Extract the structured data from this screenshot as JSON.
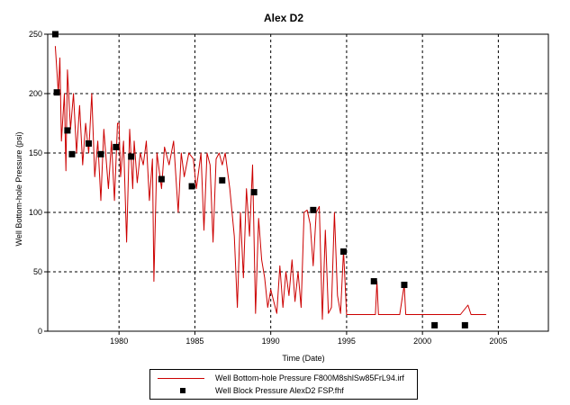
{
  "colors": {
    "line": "#cc0000",
    "marker": "#000000",
    "grid": "#000000",
    "background": "#ffffff"
  },
  "chart_data": {
    "type": "line",
    "title": "Alex D2",
    "xlabel": "Time (Date)",
    "ylabel": "Well Bottom-hole Pressure (psi)",
    "xlim": [
      1975.3,
      2008.3
    ],
    "ylim": [
      0,
      250
    ],
    "xticks": [
      1980,
      1985,
      1990,
      1995,
      2000,
      2005
    ],
    "yticks": [
      0,
      50,
      100,
      150,
      200,
      250
    ],
    "grid": true,
    "grid_style": "dashed",
    "legend_position": "bottom",
    "series": [
      {
        "name": "Well Bottom-hole Pressure F800M8shlSw85FrL94.irf",
        "kind": "line",
        "x": [
          1975.8,
          1976.0,
          1976.1,
          1976.2,
          1976.4,
          1976.5,
          1976.6,
          1976.8,
          1977.0,
          1977.2,
          1977.4,
          1977.6,
          1977.8,
          1978.0,
          1978.2,
          1978.4,
          1978.6,
          1978.8,
          1979.0,
          1979.3,
          1979.5,
          1979.7,
          1979.9,
          1980.0,
          1980.1,
          1980.3,
          1980.5,
          1980.7,
          1980.9,
          1981.0,
          1981.2,
          1981.4,
          1981.6,
          1981.8,
          1982.0,
          1982.2,
          1982.3,
          1982.5,
          1982.8,
          1983.0,
          1983.3,
          1983.6,
          1983.9,
          1984.1,
          1984.3,
          1984.6,
          1984.9,
          1985.1,
          1985.4,
          1985.6,
          1985.8,
          1986.0,
          1986.2,
          1986.4,
          1986.6,
          1986.8,
          1987.0,
          1987.3,
          1987.6,
          1987.8,
          1988.0,
          1988.2,
          1988.4,
          1988.6,
          1988.8,
          1989.0,
          1989.2,
          1989.4,
          1989.6,
          1989.8,
          1990.0,
          1990.2,
          1990.4,
          1990.6,
          1990.8,
          1991.0,
          1991.2,
          1991.4,
          1991.6,
          1991.8,
          1992.0,
          1992.2,
          1992.4,
          1992.6,
          1992.8,
          1993.0,
          1993.2,
          1993.4,
          1993.6,
          1993.8,
          1994.0,
          1994.2,
          1994.4,
          1994.6,
          1994.8,
          1995.0,
          1995.5,
          1996.0,
          1996.5,
          1996.9,
          1997.0,
          1997.1,
          1997.5,
          1998.0,
          1998.5,
          1998.8,
          1998.9,
          1999.0,
          1999.5,
          2000.0,
          2000.5,
          2001.0,
          2001.5,
          2002.0,
          2002.5,
          2003.0,
          2003.2,
          2003.4,
          2003.8,
          2004.2
        ],
        "y": [
          240,
          200,
          230,
          160,
          200,
          135,
          220,
          170,
          200,
          150,
          190,
          140,
          175,
          150,
          200,
          130,
          160,
          110,
          170,
          120,
          160,
          110,
          175,
          175,
          130,
          160,
          75,
          170,
          120,
          160,
          125,
          150,
          140,
          160,
          110,
          145,
          42,
          150,
          120,
          155,
          140,
          160,
          100,
          150,
          130,
          150,
          145,
          120,
          150,
          85,
          150,
          140,
          75,
          145,
          150,
          140,
          150,
          120,
          80,
          20,
          100,
          45,
          120,
          80,
          140,
          15,
          95,
          60,
          45,
          20,
          35,
          25,
          15,
          55,
          20,
          50,
          30,
          60,
          25,
          50,
          20,
          100,
          102,
          90,
          55,
          100,
          105,
          10,
          85,
          15,
          20,
          100,
          30,
          15,
          68,
          14,
          14,
          14,
          14,
          14,
          42,
          14,
          14,
          14,
          14,
          39,
          14,
          14,
          14,
          14,
          14,
          14,
          14,
          14,
          14,
          22,
          14,
          14,
          14,
          14
        ]
      },
      {
        "name": "Well Block Pressure AlexD2 FSP.fhf",
        "kind": "scatter",
        "x": [
          1975.8,
          1975.9,
          1976.6,
          1976.9,
          1978.0,
          1978.8,
          1979.8,
          1980.8,
          1982.8,
          1984.8,
          1986.8,
          1988.9,
          1992.8,
          1994.8,
          1996.8,
          1998.8,
          2000.8,
          2002.8
        ],
        "y": [
          250,
          201,
          169,
          149,
          158,
          149,
          155,
          147,
          128,
          122,
          127,
          117,
          102,
          67,
          42,
          39,
          5,
          5
        ]
      }
    ]
  }
}
